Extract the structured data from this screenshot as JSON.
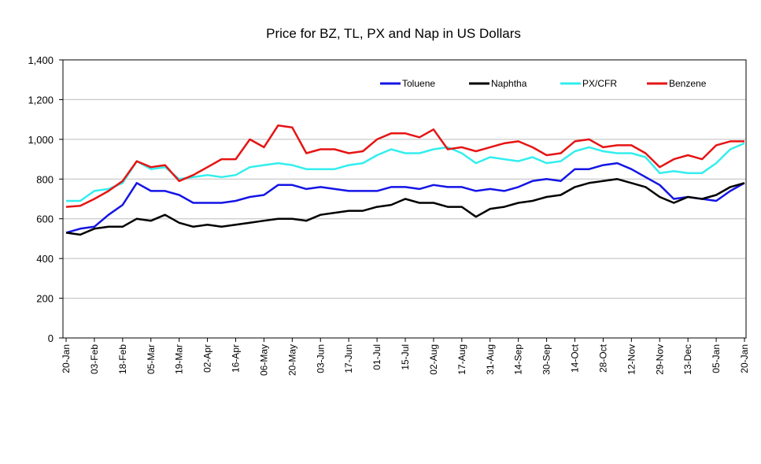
{
  "chart_data": {
    "type": "line",
    "title": "Price for BZ, TL, PX and Nap in US Dollars",
    "categories": [
      "20-Jan",
      null,
      "03-Feb",
      null,
      "18-Feb",
      null,
      "05-Mar",
      null,
      "19-Mar",
      null,
      "02-Apr",
      null,
      "16-Apr",
      null,
      "06-May",
      null,
      "20-May",
      null,
      "03-Jun",
      null,
      "17-Jun",
      null,
      "01-Jul",
      null,
      "15-Jul",
      null,
      "02-Aug",
      null,
      "17-Aug",
      null,
      "31-Aug",
      null,
      "14-Sep",
      null,
      "30-Sep",
      null,
      "14-Oct",
      null,
      "28-Oct",
      null,
      "12-Nov",
      null,
      "29-Nov",
      null,
      "13-Dec",
      null,
      "05-Jan",
      null,
      "20-Jan"
    ],
    "series": [
      {
        "name": "Toluene",
        "color": "#1414e6",
        "values": [
          530,
          550,
          560,
          620,
          670,
          780,
          740,
          740,
          720,
          680,
          680,
          680,
          690,
          710,
          720,
          770,
          770,
          750,
          760,
          750,
          740,
          740,
          740,
          760,
          760,
          750,
          770,
          760,
          760,
          740,
          750,
          740,
          760,
          790,
          800,
          790,
          850,
          850,
          870,
          880,
          850,
          810,
          770,
          700,
          710,
          700,
          690,
          740,
          780
        ]
      },
      {
        "name": "Naphtha",
        "color": "#000000",
        "values": [
          530,
          520,
          550,
          560,
          560,
          600,
          590,
          620,
          580,
          560,
          570,
          560,
          570,
          580,
          590,
          600,
          600,
          590,
          620,
          630,
          640,
          640,
          660,
          670,
          700,
          680,
          680,
          660,
          660,
          610,
          650,
          660,
          680,
          690,
          710,
          720,
          760,
          780,
          790,
          800,
          780,
          760,
          710,
          680,
          710,
          700,
          720,
          760,
          780
        ]
      },
      {
        "name": "PX/CFR",
        "color": "#33eeee",
        "values": [
          690,
          690,
          740,
          750,
          780,
          890,
          850,
          860,
          800,
          810,
          820,
          810,
          820,
          860,
          870,
          880,
          870,
          850,
          850,
          850,
          870,
          880,
          920,
          950,
          930,
          930,
          950,
          960,
          930,
          880,
          910,
          900,
          890,
          910,
          880,
          890,
          940,
          960,
          940,
          930,
          930,
          910,
          830,
          840,
          830,
          830,
          880,
          950,
          980
        ]
      },
      {
        "name": "Benzene",
        "color": "#e61414",
        "values": [
          660,
          665,
          700,
          740,
          790,
          890,
          860,
          870,
          790,
          820,
          860,
          900,
          900,
          1000,
          960,
          1070,
          1060,
          930,
          950,
          950,
          930,
          940,
          1000,
          1030,
          1030,
          1010,
          1050,
          950,
          960,
          940,
          960,
          980,
          990,
          960,
          920,
          930,
          990,
          1000,
          960,
          970,
          970,
          930,
          860,
          900,
          920,
          900,
          970,
          990,
          990
        ]
      }
    ],
    "ylim": [
      0,
      1400
    ],
    "yticks": [
      0,
      200,
      400,
      600,
      800,
      {
        "value": 1000,
        "label": "1,000"
      },
      {
        "value": 1200,
        "label": "1,200"
      },
      {
        "value": 1400,
        "label": "1,400"
      }
    ],
    "grid": true,
    "legend": "top-right"
  }
}
